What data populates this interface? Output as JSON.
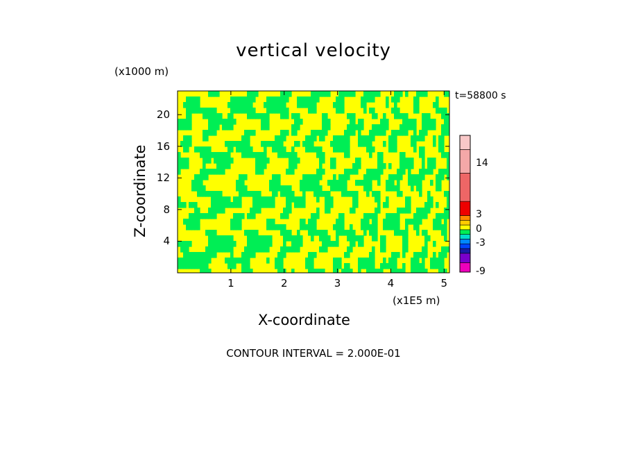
{
  "chart_data": {
    "type": "heatmap",
    "title": "vertical velocity",
    "xlabel": "X-coordinate",
    "ylabel": "Z-coordinate",
    "x_units": "(x1E5 m)",
    "z_units": "(x1000 m)",
    "time_label": "t=58800 s",
    "xlim": [
      0,
      5.1
    ],
    "ylim": [
      0,
      23
    ],
    "x_ticks": [
      "1",
      "2",
      "3",
      "4",
      "5"
    ],
    "y_ticks": [
      "4",
      "8",
      "12",
      "16",
      "20"
    ],
    "fill_colors": {
      "positive_small": "#ffff00",
      "negative_small": "#00ee55"
    },
    "colorbar": {
      "tick_labels": [
        "14",
        "3",
        "0",
        "-3",
        "-9"
      ],
      "tick_values": [
        14,
        3,
        0,
        -3,
        -9
      ],
      "levels": [
        {
          "from": -9,
          "to": -7,
          "color": "#ee00bb"
        },
        {
          "from": -7,
          "to": -5,
          "color": "#7a00cc"
        },
        {
          "from": -5,
          "to": -4,
          "color": "#1a1aa8"
        },
        {
          "from": -4,
          "to": -3,
          "color": "#0044ff"
        },
        {
          "from": -3,
          "to": -2,
          "color": "#0088ff"
        },
        {
          "from": -2,
          "to": -1,
          "color": "#00ddcc"
        },
        {
          "from": -1,
          "to": 0,
          "color": "#00ee55"
        },
        {
          "from": 0,
          "to": 1,
          "color": "#ffff00"
        },
        {
          "from": 1,
          "to": 2,
          "color": "#ffcc00"
        },
        {
          "from": 2,
          "to": 3,
          "color": "#ff8800"
        },
        {
          "from": 3,
          "to": 6,
          "color": "#ee0000"
        },
        {
          "from": 6,
          "to": 12,
          "color": "#ee6666"
        },
        {
          "from": 12,
          "to": 17,
          "color": "#f4a8a8"
        },
        {
          "from": 17,
          "to": 20,
          "color": "#f8c8c8"
        }
      ]
    }
  },
  "footer": {
    "contour_interval": "CONTOUR INTERVAL = 2.000E-01"
  }
}
